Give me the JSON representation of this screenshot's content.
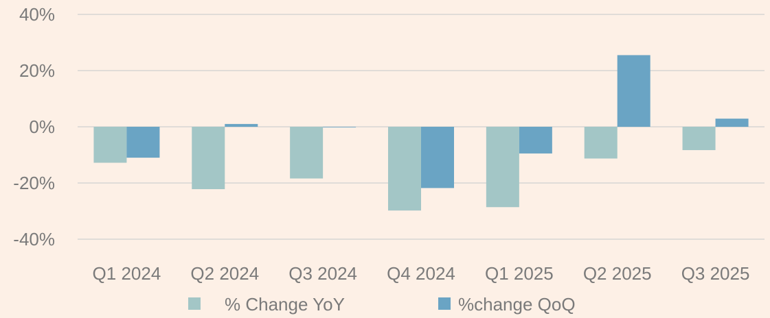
{
  "chart_data": {
    "type": "bar",
    "title": "",
    "xlabel": "",
    "ylabel": "",
    "categories": [
      "Q1 2024",
      "Q2 2024",
      "Q3 2024",
      "Q4 2024",
      "Q1 2025",
      "Q2 2025",
      "Q3 2025"
    ],
    "series": [
      {
        "name": "% Change YoY",
        "color": "#a3c6c6",
        "values": [
          -12.8,
          -22.2,
          -18.4,
          -29.8,
          -28.6,
          -11.3,
          -8.3
        ]
      },
      {
        "name": "%change QoQ",
        "color": "#6aa4c4",
        "values": [
          -11.0,
          1.0,
          -0.2,
          -21.8,
          -9.5,
          25.5,
          2.9
        ]
      }
    ],
    "ylim": [
      -40,
      40
    ],
    "yticks": [
      -40,
      -20,
      0,
      20,
      40
    ],
    "ytick_labels": [
      "-40%",
      "-20%",
      "0%",
      "20%",
      "40%"
    ],
    "grid": true,
    "legend_position": "bottom"
  }
}
